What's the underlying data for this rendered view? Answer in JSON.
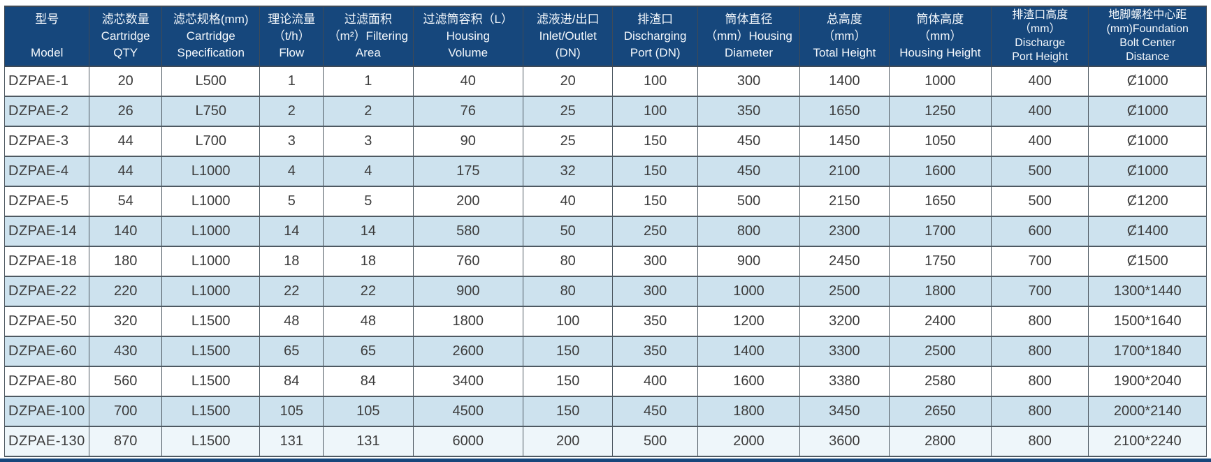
{
  "theme": {
    "header_bg": "#16477c",
    "header_text": "#f4f8fc",
    "row_bg": "#ffffff",
    "row_alt_bg": "#cde2ee",
    "last_row_bg": "#eef6fa",
    "grid_color": "#4e5962",
    "cell_text": "#3c3c3c",
    "bottom_bar": "#16477c"
  },
  "table": {
    "columns": [
      {
        "id": "model",
        "width_pct": 7.06,
        "lines": [
          "型号",
          "",
          "Model"
        ]
      },
      {
        "id": "cartridge-qty",
        "width_pct": 6.02,
        "lines": [
          "滤芯数量",
          "Cartridge",
          "QTY"
        ]
      },
      {
        "id": "cartridge-spec",
        "width_pct": 8.17,
        "lines": [
          "滤芯规格(mm)",
          "Cartridge",
          "Specification"
        ]
      },
      {
        "id": "flow",
        "width_pct": 5.27,
        "lines": [
          "理论流量",
          "（t/h）",
          "Flow"
        ]
      },
      {
        "id": "filtering-area",
        "width_pct": 7.47,
        "lines": [
          "过滤面积",
          "（m²）Filtering",
          "Area"
        ]
      },
      {
        "id": "housing-volume",
        "width_pct": 9.15,
        "lines": [
          "过滤筒容积（L）",
          "Housing",
          "Volume"
        ]
      },
      {
        "id": "inlet-outlet",
        "width_pct": 7.47,
        "lines": [
          "滤液进/出口",
          "Inlet/Outlet",
          "(DN)"
        ]
      },
      {
        "id": "discharging-port",
        "width_pct": 7.06,
        "lines": [
          "排渣口",
          "Discharging",
          "Port (DN)"
        ]
      },
      {
        "id": "housing-diameter",
        "width_pct": 8.51,
        "lines": [
          "筒体直径",
          "（mm）Housing",
          "Diameter"
        ]
      },
      {
        "id": "total-height",
        "width_pct": 7.41,
        "lines": [
          "总高度",
          "（mm）",
          "Total Height"
        ]
      },
      {
        "id": "housing-height",
        "width_pct": 8.51,
        "lines": [
          "筒体高度",
          "（mm）",
          "Housing Height"
        ]
      },
      {
        "id": "discharge-port-height",
        "width_pct": 8.11,
        "lines": [
          "排渣口高度",
          "（mm）",
          "Discharge",
          "Port Height"
        ]
      },
      {
        "id": "foundation-bolt-distance",
        "width_pct": 9.79,
        "lines": [
          "地脚螺栓中心距",
          "(mm)Foundation",
          "Bolt Center",
          "Distance"
        ]
      }
    ],
    "rows": [
      {
        "model": "DZPAE-1",
        "values": [
          "20",
          "L500",
          "1",
          "1",
          "40",
          "20",
          "100",
          "300",
          "1400",
          "1000",
          "400",
          "Ȼ1000"
        ]
      },
      {
        "model": "DZPAE-2",
        "values": [
          "26",
          "L750",
          "2",
          "2",
          "76",
          "25",
          "100",
          "350",
          "1650",
          "1250",
          "400",
          "Ȼ1000"
        ]
      },
      {
        "model": "DZPAE-3",
        "values": [
          "44",
          "L700",
          "3",
          "3",
          "90",
          "25",
          "150",
          "450",
          "1450",
          "1050",
          "400",
          "Ȼ1000"
        ]
      },
      {
        "model": "DZPAE-4",
        "values": [
          "44",
          "L1000",
          "4",
          "4",
          "175",
          "32",
          "150",
          "450",
          "2100",
          "1600",
          "500",
          "Ȼ1000"
        ]
      },
      {
        "model": "DZPAE-5",
        "values": [
          "54",
          "L1000",
          "5",
          "5",
          "200",
          "40",
          "150",
          "500",
          "2150",
          "1650",
          "500",
          "Ȼ1200"
        ]
      },
      {
        "model": "DZPAE-14",
        "values": [
          "140",
          "L1000",
          "14",
          "14",
          "580",
          "50",
          "250",
          "800",
          "2300",
          "1700",
          "600",
          "Ȼ1400"
        ]
      },
      {
        "model": "DZPAE-18",
        "values": [
          "180",
          "L1000",
          "18",
          "18",
          "760",
          "80",
          "300",
          "900",
          "2450",
          "1750",
          "700",
          "Ȼ1500"
        ]
      },
      {
        "model": "DZPAE-22",
        "values": [
          "220",
          "L1000",
          "22",
          "22",
          "900",
          "80",
          "300",
          "1000",
          "2500",
          "1800",
          "700",
          "1300*1440"
        ]
      },
      {
        "model": "DZPAE-50",
        "values": [
          "320",
          "L1500",
          "48",
          "48",
          "1800",
          "100",
          "350",
          "1200",
          "3200",
          "2400",
          "800",
          "1500*1640"
        ]
      },
      {
        "model": "DZPAE-60",
        "values": [
          "430",
          "L1500",
          "65",
          "65",
          "2600",
          "150",
          "350",
          "1400",
          "3300",
          "2500",
          "800",
          "1700*1840"
        ]
      },
      {
        "model": "DZPAE-80",
        "values": [
          "560",
          "L1500",
          "84",
          "84",
          "3400",
          "150",
          "400",
          "1600",
          "3380",
          "2580",
          "800",
          "1900*2040"
        ]
      },
      {
        "model": "DZPAE-100",
        "values": [
          "700",
          "L1500",
          "105",
          "105",
          "4500",
          "150",
          "450",
          "1800",
          "3450",
          "2650",
          "800",
          "2000*2140"
        ]
      },
      {
        "model": "DZPAE-130",
        "values": [
          "870",
          "L1500",
          "131",
          "131",
          "6000",
          "200",
          "500",
          "2000",
          "3600",
          "2800",
          "800",
          "2100*2240"
        ]
      }
    ]
  }
}
